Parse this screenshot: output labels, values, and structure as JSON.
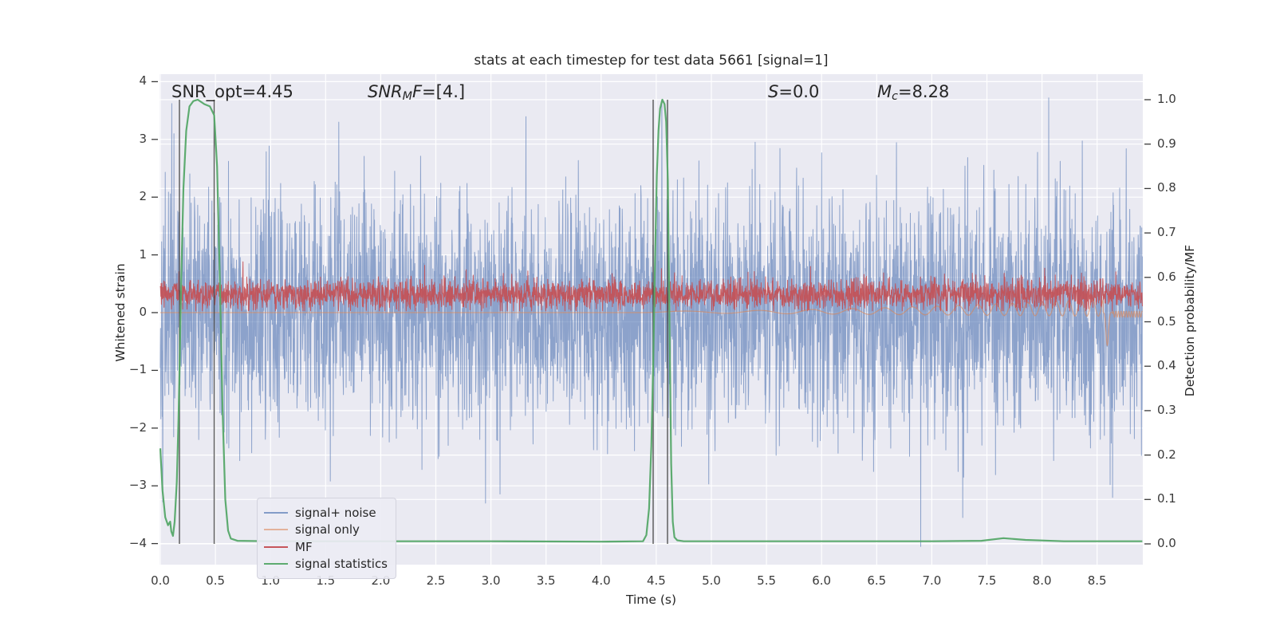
{
  "title": "stats at each timestep for test data 5661 [signal=1]",
  "annotations": {
    "snr_opt": "SNR_opt=4.45",
    "snr_mf": {
      "italic_pre": "SNR",
      "sub": "M",
      "italic_mid": "F",
      "rest": "=[4.]"
    },
    "s": {
      "italic_pre": "S",
      "rest": "=0.0"
    },
    "mc": {
      "italic_pre": "M",
      "sub": "c",
      "rest": "=8.28"
    }
  },
  "axes": {
    "x_label": "Time (s)",
    "y_left_label": "Whitened strain",
    "y_right_label": "Detection probability/MF",
    "x_ticks": {
      "labels": [
        "0.0",
        "0.5",
        "1.0",
        "1.5",
        "2.0",
        "2.5",
        "3.0",
        "3.5",
        "4.0",
        "4.5",
        "5.0",
        "5.5",
        "6.0",
        "6.5",
        "7.0",
        "7.5",
        "8.0",
        "8.5"
      ],
      "values": [
        0,
        0.5,
        1,
        1.5,
        2,
        2.5,
        3,
        3.5,
        4,
        4.5,
        5,
        5.5,
        6,
        6.5,
        7,
        7.5,
        8,
        8.5
      ]
    },
    "y_left_ticks": {
      "labels": [
        "4",
        "3",
        "2",
        "1",
        "0",
        "−1",
        "−2",
        "−3",
        "−4"
      ],
      "values": [
        4,
        3,
        2,
        1,
        0,
        -1,
        -2,
        -3,
        -4
      ]
    },
    "y_right_ticks": {
      "labels": [
        "1.0",
        "0.9",
        "0.8",
        "0.7",
        "0.6",
        "0.5",
        "0.4",
        "0.3",
        "0.2",
        "0.1",
        "0.0"
      ],
      "values": [
        1.0,
        0.9,
        0.8,
        0.7,
        0.6,
        0.5,
        0.4,
        0.3,
        0.2,
        0.1,
        0.0
      ]
    }
  },
  "legend": {
    "items": [
      {
        "label": "signal+ noise",
        "color": "rgba(76,114,176,0.65)"
      },
      {
        "label": "signal only",
        "color": "rgba(221,132,82,0.55)"
      },
      {
        "label": "MF",
        "color": "rgba(196,78,82,0.95)"
      },
      {
        "label": "signal statistics",
        "color": "rgba(85,168,104,0.95)"
      }
    ]
  },
  "chart_data": {
    "type": "line",
    "title": "stats at each timestep for test data 5661 [signal=1]",
    "xlabel": "Time (s)",
    "ylabel_left": "Whitened strain",
    "ylabel_right": "Detection probability/MF",
    "xlim": [
      0,
      8.91
    ],
    "ylim_left": [
      -4.37,
      4.13
    ],
    "ylim_right": [
      -0.05,
      1.06
    ],
    "grid": true,
    "background": "#eaeaf2",
    "grid_color": "#ffffff",
    "readout": {
      "SNR_opt": 4.45,
      "SNR_MF": [
        4.0
      ],
      "S": 0.0,
      "M_c": 8.28
    },
    "series": [
      {
        "name": "signal+ noise",
        "axis": "left",
        "style": "gaussian-noise",
        "mean": 0,
        "std": 1.0,
        "n": 3600,
        "seed": 42,
        "color": "#4C72B0",
        "alpha": 0.6,
        "width": 1,
        "spikes": [
          [
            0.105,
            3.62
          ],
          [
            0.125,
            3.1
          ],
          [
            1.62,
            3.3
          ],
          [
            2.95,
            -3.3
          ],
          [
            4.55,
            3.68
          ],
          [
            6.9,
            -4.05
          ],
          [
            7.28,
            -3.55
          ],
          [
            8.06,
            3.72
          ],
          [
            8.64,
            -3.2
          ]
        ]
      },
      {
        "name": "signal only",
        "axis": "left",
        "style": "chirp",
        "color": "#DD8452",
        "alpha": 0.6,
        "width": 1.2,
        "n": 4200,
        "flat_until": 4.35,
        "chirp": {
          "start": 4.35,
          "end": 8.555,
          "amp": [
            0.025,
            0.015,
            0.012
          ],
          "freq_base": 1.2,
          "freq_quad": 0.5,
          "sag": 0.015
        },
        "dip": {
          "t": 8.592,
          "depth": -0.58,
          "width": 0.016
        },
        "post": {
          "start": 8.64,
          "offset": -0.028,
          "amp": 0.052,
          "freq": 42
        }
      },
      {
        "name": "MF",
        "axis": "left",
        "style": "gaussian-noise",
        "mean": 0.32,
        "std": 0.13,
        "clip_min": 0.03,
        "n": 3600,
        "seed": 9,
        "color": "#C44E52",
        "alpha": 0.9,
        "width": 1,
        "spikes": [
          [
            0.75,
            0.88
          ],
          [
            2.4,
            0.82
          ],
          [
            5.9,
            0.8
          ]
        ]
      },
      {
        "name": "signal statistics",
        "axis": "right",
        "style": "polyline",
        "color": "#55A868",
        "alpha": 0.95,
        "width": 2.2,
        "points": [
          [
            0,
            0.215
          ],
          [
            0.02,
            0.12
          ],
          [
            0.045,
            0.06
          ],
          [
            0.07,
            0.042
          ],
          [
            0.09,
            0.05
          ],
          [
            0.1,
            0.028
          ],
          [
            0.115,
            0.018
          ],
          [
            0.13,
            0.05
          ],
          [
            0.15,
            0.14
          ],
          [
            0.165,
            0.28
          ],
          [
            0.174,
            0.38
          ],
          [
            0.19,
            0.6
          ],
          [
            0.21,
            0.8
          ],
          [
            0.235,
            0.93
          ],
          [
            0.265,
            0.985
          ],
          [
            0.3,
            0.997
          ],
          [
            0.34,
            1.0
          ],
          [
            0.4,
            0.99
          ],
          [
            0.45,
            0.985
          ],
          [
            0.489,
            0.965
          ],
          [
            0.515,
            0.85
          ],
          [
            0.54,
            0.6
          ],
          [
            0.565,
            0.3
          ],
          [
            0.59,
            0.1
          ],
          [
            0.615,
            0.03
          ],
          [
            0.64,
            0.012
          ],
          [
            0.7,
            0.007
          ],
          [
            1.0,
            0.006
          ],
          [
            2.0,
            0.006
          ],
          [
            3.0,
            0.006
          ],
          [
            4.0,
            0.005
          ],
          [
            4.38,
            0.006
          ],
          [
            4.41,
            0.02
          ],
          [
            4.435,
            0.08
          ],
          [
            4.455,
            0.22
          ],
          [
            4.472,
            0.4
          ],
          [
            4.49,
            0.65
          ],
          [
            4.505,
            0.83
          ],
          [
            4.52,
            0.93
          ],
          [
            4.535,
            0.98
          ],
          [
            4.555,
            1.0
          ],
          [
            4.575,
            0.99
          ],
          [
            4.59,
            0.95
          ],
          [
            4.605,
            0.82
          ],
          [
            4.62,
            0.5
          ],
          [
            4.635,
            0.18
          ],
          [
            4.65,
            0.05
          ],
          [
            4.665,
            0.015
          ],
          [
            4.69,
            0.008
          ],
          [
            4.75,
            0.006
          ],
          [
            5.0,
            0.006
          ],
          [
            5.5,
            0.006
          ],
          [
            6.0,
            0.006
          ],
          [
            6.5,
            0.006
          ],
          [
            7.0,
            0.006
          ],
          [
            7.45,
            0.007
          ],
          [
            7.65,
            0.013
          ],
          [
            7.85,
            0.009
          ],
          [
            8.2,
            0.006
          ],
          [
            8.6,
            0.006
          ],
          [
            8.91,
            0.006
          ]
        ]
      }
    ],
    "vlines": {
      "times": [
        0.174,
        0.489,
        4.472,
        4.602
      ],
      "span_right_axis": [
        0,
        1
      ],
      "color": "#3b3b3b",
      "alpha": 0.75,
      "width": 1.6
    }
  }
}
